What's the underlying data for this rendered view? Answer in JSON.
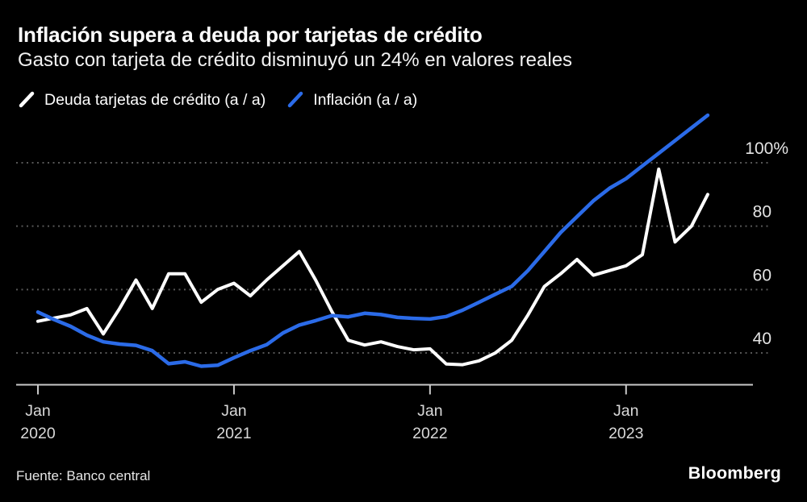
{
  "header": {
    "title": "Inflación supera a deuda por tarjetas de crédito",
    "subtitle": "Gasto con tarjeta de crédito disminuyó un 24% en valores reales"
  },
  "footer": {
    "source": "Fuente: Banco central",
    "brand": "Bloomberg"
  },
  "colors": {
    "background": "#000000",
    "deuda_line": "#ffffff",
    "inflacion_line": "#2b6be8",
    "gridline": "#565656",
    "axis_line": "#c9c9c9",
    "tick_label": "#d9d9d9",
    "y_label": "#e3e3e3"
  },
  "chart_data": {
    "type": "line",
    "title": "Inflación supera a deuda por tarjetas de crédito",
    "subtitle": "Gasto con tarjeta de crédito disminuyó un 24% en valores reales",
    "xlabel": "",
    "ylabel": "",
    "grid": "horizontal-dotted",
    "legend_position": "top-left",
    "background": "#000000",
    "ylim": [
      30,
      116
    ],
    "y_ticks": [
      {
        "value": 40,
        "label": "40"
      },
      {
        "value": 60,
        "label": "60"
      },
      {
        "value": 80,
        "label": "80"
      },
      {
        "value": 100,
        "label": "100%"
      }
    ],
    "x_ticks": [
      {
        "index": 0,
        "month": "Jan",
        "year": "2020"
      },
      {
        "index": 12,
        "month": "Jan",
        "year": "2021"
      },
      {
        "index": 24,
        "month": "Jan",
        "year": "2022"
      },
      {
        "index": 36,
        "month": "Jan",
        "year": "2023"
      }
    ],
    "categories": [
      "Jan 2020",
      "Feb 2020",
      "Mar 2020",
      "Apr 2020",
      "May 2020",
      "Jun 2020",
      "Jul 2020",
      "Aug 2020",
      "Sep 2020",
      "Oct 2020",
      "Nov 2020",
      "Dec 2020",
      "Jan 2021",
      "Feb 2021",
      "Mar 2021",
      "Apr 2021",
      "May 2021",
      "Jun 2021",
      "Jul 2021",
      "Aug 2021",
      "Sep 2021",
      "Oct 2021",
      "Nov 2021",
      "Dec 2021",
      "Jan 2022",
      "Feb 2022",
      "Mar 2022",
      "Apr 2022",
      "May 2022",
      "Jun 2022",
      "Jul 2022",
      "Aug 2022",
      "Sep 2022",
      "Oct 2022",
      "Nov 2022",
      "Dec 2022",
      "Jan 2023",
      "Feb 2023",
      "Mar 2023",
      "Apr 2023",
      "May 2023",
      "Jun 2023"
    ],
    "series": [
      {
        "id": "deuda",
        "name": "Deuda tarjetas de crédito (a / a)",
        "color": "#ffffff",
        "values": [
          50,
          51,
          52,
          54,
          46,
          54,
          63,
          54,
          65,
          65,
          56,
          60,
          62,
          58,
          63,
          67.5,
          72,
          63,
          53,
          44,
          42.5,
          43.5,
          42,
          41,
          41.3,
          36.5,
          36.3,
          37.5,
          40,
          44,
          52,
          61,
          65,
          69.5,
          64.5,
          66,
          67.5,
          71,
          98,
          75,
          80,
          90
        ]
      },
      {
        "id": "inflacion",
        "name": "Inflación (a / a)",
        "color": "#2b6be8",
        "values": [
          52.9,
          50.5,
          48.4,
          45.6,
          43.5,
          42.8,
          42.4,
          40.7,
          36.6,
          37.2,
          35.8,
          36.1,
          38.5,
          40.7,
          42.6,
          46.3,
          48.8,
          50.2,
          51.8,
          51.4,
          52.5,
          52.1,
          51.2,
          50.9,
          50.7,
          51.5,
          53.5,
          56,
          58.5,
          61,
          66,
          72,
          78,
          83,
          88,
          92,
          95,
          99,
          103,
          107,
          111,
          115
        ]
      }
    ]
  }
}
